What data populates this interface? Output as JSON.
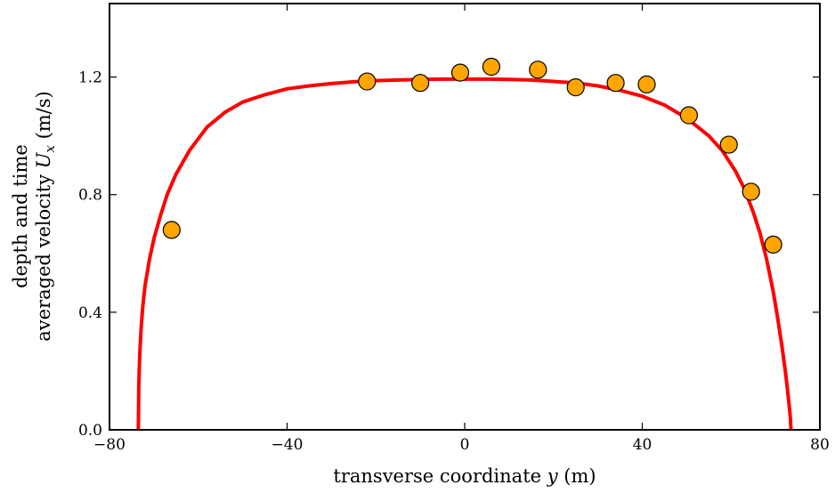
{
  "chart_data": {
    "type": "line",
    "title": "",
    "xlabel": {
      "prefix": "transverse coordinate ",
      "var": "y",
      "suffix": " (m)"
    },
    "ylabel": {
      "line1": "depth and time",
      "line2_prefix": "averaged velocity ",
      "line2_var": "U",
      "line2_sub": "x",
      "line2_suffix": " (m/s)"
    },
    "xlim": [
      -80,
      80
    ],
    "ylim": [
      0.0,
      1.45
    ],
    "xticks": [
      -80,
      -40,
      0,
      40,
      80
    ],
    "xtick_labels": [
      "−80",
      "−40",
      "0",
      "40",
      "80"
    ],
    "yticks": [
      0.0,
      0.4,
      0.8,
      1.2
    ],
    "ytick_labels": [
      "0.0",
      "0.4",
      "0.8",
      "1.2"
    ],
    "grid": false,
    "series": [
      {
        "kind": "line",
        "color": "#ff0000",
        "x": [
          -73.5,
          -73.4,
          -73.2,
          -72.9,
          -72.5,
          -72.0,
          -71.0,
          -70.0,
          -68.5,
          -67.0,
          -65.0,
          -62.0,
          -58.0,
          -54.0,
          -50.0,
          -45.0,
          -40.0,
          -35.0,
          -30.0,
          -25.0,
          -20.0,
          -15.0,
          -10.0,
          -5.0,
          0.0,
          5.0,
          10.0,
          15.0,
          20.0,
          25.0,
          30.0,
          35.0,
          40.0,
          45.0,
          50.0,
          55.0,
          58.0,
          61.0,
          63.0,
          65.0,
          66.5,
          68.0,
          69.5,
          70.5,
          71.5,
          72.3,
          72.9,
          73.3,
          73.5
        ],
        "y": [
          0.0,
          0.15,
          0.25,
          0.34,
          0.42,
          0.49,
          0.58,
          0.65,
          0.73,
          0.8,
          0.87,
          0.95,
          1.03,
          1.08,
          1.115,
          1.14,
          1.16,
          1.17,
          1.178,
          1.184,
          1.188,
          1.19,
          1.192,
          1.193,
          1.193,
          1.193,
          1.192,
          1.19,
          1.185,
          1.18,
          1.17,
          1.155,
          1.135,
          1.105,
          1.06,
          1.0,
          0.95,
          0.88,
          0.82,
          0.74,
          0.67,
          0.58,
          0.47,
          0.38,
          0.28,
          0.19,
          0.11,
          0.05,
          0.0
        ]
      },
      {
        "kind": "scatter",
        "color": "#ffa500",
        "edgecolor": "#000000",
        "x": [
          -66.0,
          -22.0,
          -10.0,
          -1.0,
          6.0,
          16.5,
          25.0,
          34.0,
          41.0,
          50.5,
          59.5,
          64.5,
          69.5
        ],
        "y": [
          0.68,
          1.185,
          1.18,
          1.215,
          1.235,
          1.225,
          1.165,
          1.18,
          1.175,
          1.07,
          0.97,
          0.81,
          0.63
        ]
      }
    ]
  }
}
